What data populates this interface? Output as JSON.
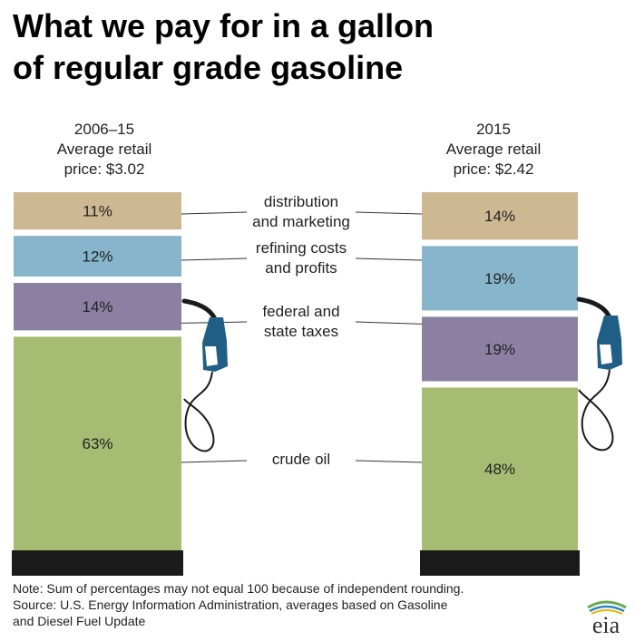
{
  "title_lines": [
    "What we pay for in a gallon",
    "of regular grade gasoline"
  ],
  "bars": [
    {
      "header": [
        "2006–15",
        "Average retail",
        "price: $3.02"
      ]
    },
    {
      "header": [
        "2015",
        "Average retail",
        "price: $2.42"
      ]
    }
  ],
  "chart_data": {
    "type": "bar",
    "stacked": true,
    "title": "What we pay for in a gallon of regular grade gasoline",
    "categories": [
      "2006–15 Average retail price: $3.02",
      "2015 Average retail price: $2.42"
    ],
    "series": [
      {
        "name": "distribution and marketing",
        "label_lines": [
          "distribution",
          "and marketing"
        ],
        "values": [
          11,
          14
        ],
        "color": "#cdb892"
      },
      {
        "name": "refining costs and profits",
        "label_lines": [
          "refining costs",
          "and profits"
        ],
        "values": [
          12,
          19
        ],
        "color": "#87b5cb"
      },
      {
        "name": "federal and state taxes",
        "label_lines": [
          "federal and",
          "state taxes"
        ],
        "values": [
          14,
          19
        ],
        "color": "#8c80a2"
      },
      {
        "name": "crude oil",
        "label_lines": [
          "crude oil"
        ],
        "values": [
          63,
          48
        ],
        "color": "#a5bc72"
      }
    ],
    "value_suffix": "%",
    "bar_base_color": "#1a1a1a"
  },
  "notes": [
    "Note: Sum of percentages may not equal 100 because of independent rounding.",
    "Source: U.S. Energy Information Administration, averages based on Gasoline",
    "and Diesel Fuel Update"
  ],
  "logo_text": "eia",
  "colors": {
    "nozzle": "#1f5f86",
    "hose": "#1a1a1a",
    "leader": "#333333"
  }
}
